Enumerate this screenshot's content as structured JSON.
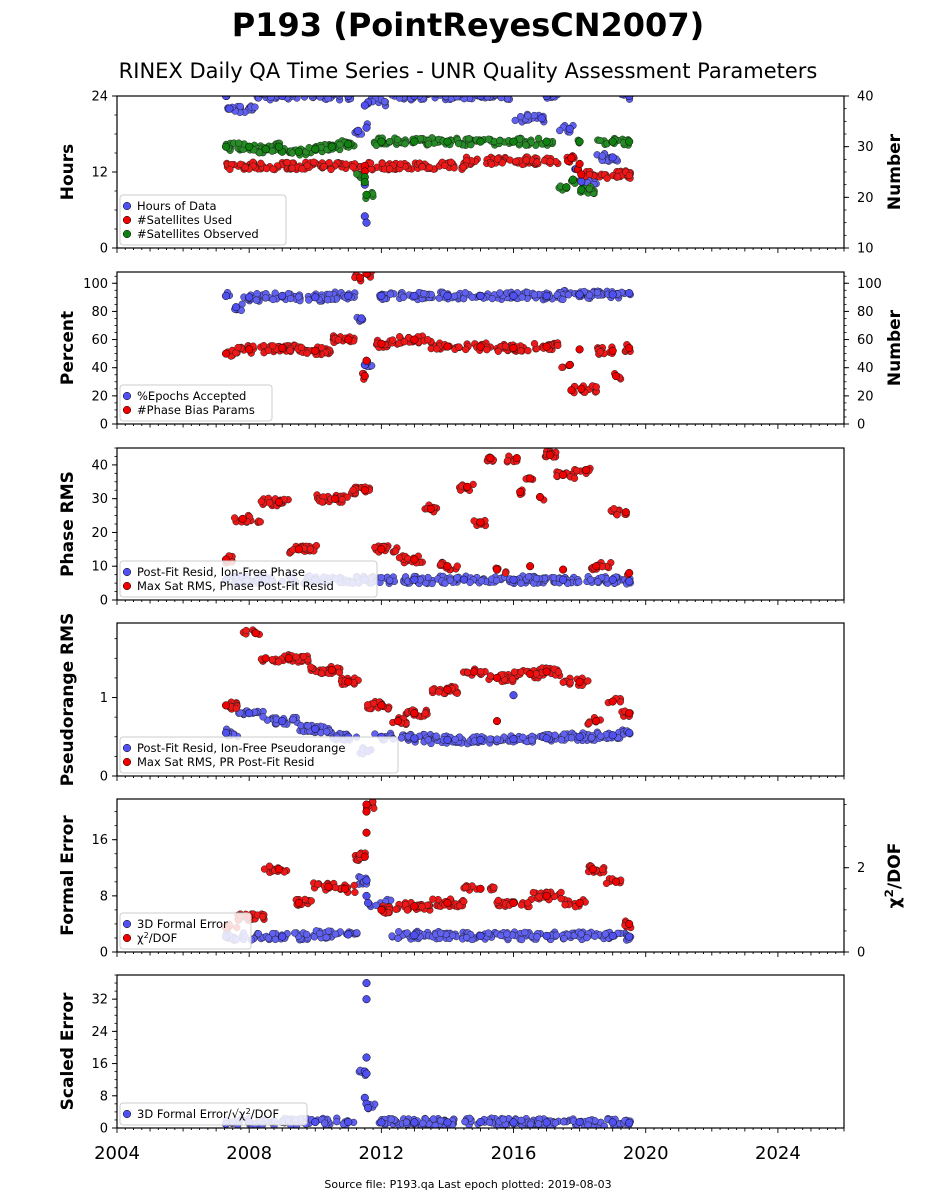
{
  "header": {
    "title": "P193 (PointReyesCN2007)",
    "subtitle": "RINEX Daily QA Time Series - UNR Quality Assessment Parameters"
  },
  "footer": {
    "text": "Source file: P193.qa Last epoch plotted: 2019-08-03"
  },
  "colors": {
    "blue": "#5050f0",
    "red": "#ee0000",
    "green": "#108010",
    "edge": "#000000"
  },
  "chart_data": [
    {
      "type": "scatter",
      "ylabel": "Hours",
      "ylabel_right": "Number",
      "xlim": [
        2004,
        2026
      ],
      "ylim": [
        0,
        24
      ],
      "ylim_right": [
        10,
        40
      ],
      "yticks": [
        0,
        12,
        24
      ],
      "yticks_right": [
        10,
        20,
        30,
        40
      ],
      "legend": "lower-left",
      "series": [
        {
          "name": "Hours of Data",
          "color": "blue",
          "axis": "left",
          "points": [
            [
              2007.3,
              24
            ],
            [
              2009.0,
              24
            ],
            [
              2011.0,
              24
            ],
            [
              2013.0,
              24
            ],
            [
              2015.0,
              24
            ],
            [
              2017.0,
              24
            ],
            [
              2019.5,
              24
            ],
            [
              2007.4,
              22
            ],
            [
              2011.3,
              18.5
            ],
            [
              2011.55,
              19
            ],
            [
              2011.5,
              10
            ],
            [
              2011.5,
              5
            ],
            [
              2011.55,
              4
            ],
            [
              2011.6,
              23
            ],
            [
              2011.5,
              22.5
            ],
            [
              2016.85,
              20.5
            ],
            [
              2017.7,
              18.8
            ],
            [
              2017.9,
              12.5
            ],
            [
              2018.05,
              10.5
            ],
            [
              2019.0,
              14.3
            ]
          ]
        },
        {
          "name": "#Satellites Used",
          "color": "red",
          "axis": "right",
          "points": [
            [
              2011.5,
              26.2
            ],
            [
              2011.5,
              25.1
            ],
            [
              2017.65,
              27.2
            ],
            [
              2017.75,
              27.8
            ],
            [
              2017.95,
              25.5
            ],
            [
              2018.0,
              26.6
            ],
            [
              2018.05,
              24.5
            ]
          ]
        },
        {
          "name": "#Satellites Observed",
          "color": "green",
          "axis": "right",
          "points": [
            [
              2007.3,
              30
            ],
            [
              2008.0,
              30
            ],
            [
              2008.5,
              29.5
            ],
            [
              2009.0,
              29
            ],
            [
              2009.5,
              29
            ],
            [
              2010.0,
              29.5
            ],
            [
              2010.5,
              30
            ],
            [
              2011.0,
              30.5
            ],
            [
              2012.0,
              31
            ],
            [
              2013.0,
              31
            ],
            [
              2014.0,
              31
            ],
            [
              2015.0,
              31
            ],
            [
              2016.0,
              31
            ],
            [
              2017.0,
              31
            ],
            [
              2018.0,
              31
            ],
            [
              2019.0,
              31
            ],
            [
              2019.5,
              31
            ],
            [
              2011.5,
              24
            ],
            [
              2011.5,
              23
            ],
            [
              2011.55,
              20.5
            ],
            [
              2017.6,
              22
            ],
            [
              2017.8,
              23.5
            ],
            [
              2018.05,
              21.5
            ],
            [
              2008.9,
              30
            ]
          ]
        }
      ]
    },
    {
      "type": "scatter",
      "ylabel": "Percent",
      "ylabel_right": "Number",
      "xlim": [
        2004,
        2026
      ],
      "ylim": [
        0,
        108
      ],
      "ylim_right": [
        0,
        108
      ],
      "yticks": [
        0,
        20,
        40,
        60,
        80,
        100
      ],
      "yticks_right": [
        0,
        20,
        40,
        60,
        80,
        100
      ],
      "legend": "lower-left",
      "series": [
        {
          "name": "%Epochs Accepted",
          "color": "blue",
          "axis": "left",
          "points": [
            [
              2007.3,
              91
            ],
            [
              2008.0,
              90
            ],
            [
              2009.0,
              91
            ],
            [
              2010.0,
              90
            ],
            [
              2011.0,
              91
            ],
            [
              2012.0,
              91
            ],
            [
              2013.0,
              91
            ],
            [
              2014.0,
              91
            ],
            [
              2015.0,
              91
            ],
            [
              2016.0,
              91
            ],
            [
              2017.0,
              91
            ],
            [
              2018.0,
              92
            ],
            [
              2019.0,
              92
            ],
            [
              2019.5,
              93
            ],
            [
              2011.5,
              42
            ],
            [
              2011.4,
              75
            ],
            [
              2007.6,
              83
            ]
          ]
        },
        {
          "name": "#Phase Bias Params",
          "color": "red",
          "axis": "right",
          "points": [
            [
              2007.3,
              50
            ],
            [
              2008.0,
              53
            ],
            [
              2009.0,
              54
            ],
            [
              2010.0,
              52
            ],
            [
              2011.0,
              60
            ],
            [
              2012.0,
              57
            ],
            [
              2013.0,
              60
            ],
            [
              2014.0,
              55
            ],
            [
              2015.0,
              55
            ],
            [
              2016.0,
              54
            ],
            [
              2017.0,
              55
            ],
            [
              2018.0,
              53
            ],
            [
              2019.0,
              52
            ],
            [
              2019.5,
              54
            ],
            [
              2011.35,
              104
            ],
            [
              2011.55,
              107
            ],
            [
              2011.5,
              34
            ],
            [
              2011.55,
              45
            ],
            [
              2017.75,
              24
            ],
            [
              2018.05,
              25
            ],
            [
              2019.1,
              34
            ],
            [
              2017.7,
              42
            ]
          ]
        }
      ]
    },
    {
      "type": "scatter",
      "ylabel": "Phase RMS",
      "xlim": [
        2004,
        2026
      ],
      "ylim": [
        0,
        45
      ],
      "yticks": [
        0,
        10,
        20,
        30,
        40
      ],
      "legend": "lower-left",
      "series": [
        {
          "name": "Post-Fit Resid, Ion-Free Phase",
          "color": "blue",
          "axis": "left",
          "points": [
            [
              2007.3,
              6
            ],
            [
              2008.5,
              6
            ],
            [
              2010.0,
              6
            ],
            [
              2011.5,
              6
            ],
            [
              2013.0,
              6
            ],
            [
              2014.5,
              6
            ],
            [
              2016.0,
              6
            ],
            [
              2017.5,
              6
            ],
            [
              2019.0,
              6
            ],
            [
              2019.5,
              5.5
            ]
          ]
        },
        {
          "name": "Max Sat RMS, Phase Post-Fit Resid",
          "color": "red",
          "axis": "left",
          "points": [
            [
              2007.3,
              12
            ],
            [
              2007.8,
              24
            ],
            [
              2008.9,
              29
            ],
            [
              2009.5,
              15
            ],
            [
              2010.6,
              30
            ],
            [
              2011.5,
              32.5
            ],
            [
              2013.5,
              27
            ],
            [
              2014.6,
              33.5
            ],
            [
              2015.0,
              23
            ],
            [
              2015.3,
              42
            ],
            [
              2016.1,
              42
            ],
            [
              2016.2,
              32
            ],
            [
              2016.5,
              36
            ],
            [
              2016.8,
              30.5
            ],
            [
              2017.1,
              43
            ],
            [
              2017.5,
              37
            ],
            [
              2018.2,
              38.5
            ],
            [
              2019.4,
              26
            ],
            [
              2012.0,
              15
            ],
            [
              2013.0,
              12
            ],
            [
              2014.0,
              10
            ],
            [
              2015.5,
              9
            ],
            [
              2016.5,
              10
            ],
            [
              2017.5,
              9
            ],
            [
              2018.5,
              10
            ],
            [
              2019.5,
              8
            ]
          ]
        }
      ]
    },
    {
      "type": "scatter",
      "ylabel": "Pseudorange RMS",
      "xlim": [
        2004,
        2026
      ],
      "ylim": [
        0,
        1.95
      ],
      "yticks": [
        0,
        1
      ],
      "legend": "lower-left",
      "series": [
        {
          "name": "Post-Fit Resid, Ion-Free Pseudorange",
          "color": "blue",
          "axis": "left",
          "points": [
            [
              2007.3,
              0.55
            ],
            [
              2008.0,
              0.8
            ],
            [
              2009.0,
              0.7
            ],
            [
              2010.0,
              0.6
            ],
            [
              2011.0,
              0.5
            ],
            [
              2012.0,
              0.5
            ],
            [
              2013.0,
              0.48
            ],
            [
              2014.0,
              0.46
            ],
            [
              2015.0,
              0.46
            ],
            [
              2016.0,
              0.47
            ],
            [
              2017.0,
              0.48
            ],
            [
              2018.0,
              0.5
            ],
            [
              2019.0,
              0.52
            ],
            [
              2019.5,
              0.55
            ],
            [
              2011.6,
              0.32
            ],
            [
              2016.0,
              1.03
            ]
          ]
        },
        {
          "name": "Max Sat RMS, PR Post-Fit Resid",
          "color": "red",
          "axis": "left",
          "points": [
            [
              2007.3,
              0.9
            ],
            [
              2008.2,
              1.82
            ],
            [
              2008.5,
              1.5
            ],
            [
              2009.2,
              1.5
            ],
            [
              2010.5,
              1.35
            ],
            [
              2011.0,
              1.2
            ],
            [
              2012.0,
              0.9
            ],
            [
              2013.0,
              0.8
            ],
            [
              2014.0,
              1.1
            ],
            [
              2014.8,
              1.33
            ],
            [
              2015.5,
              1.25
            ],
            [
              2016.5,
              1.3
            ],
            [
              2017.0,
              1.33
            ],
            [
              2018.0,
              1.2
            ],
            [
              2019.0,
              0.95
            ],
            [
              2019.5,
              0.8
            ],
            [
              2012.5,
              0.7
            ],
            [
              2015.5,
              0.7
            ],
            [
              2018.5,
              0.7
            ]
          ]
        }
      ]
    },
    {
      "type": "scatter",
      "ylabel": "Formal Error",
      "ylabel_right": "χ2/DOF",
      "xlim": [
        2004,
        2026
      ],
      "ylim": [
        0,
        21.8
      ],
      "ylim_right": [
        0,
        3.63
      ],
      "yticks": [
        0,
        8,
        16
      ],
      "yticks_right": [
        0,
        2
      ],
      "legend": "lower-left",
      "series": [
        {
          "name": "3D Formal Error",
          "color": "blue",
          "axis": "left",
          "points": [
            [
              2007.3,
              2.2
            ],
            [
              2009.0,
              2.2
            ],
            [
              2011.0,
              2.5
            ],
            [
              2013.0,
              2.4
            ],
            [
              2015.0,
              2.3
            ],
            [
              2017.0,
              2.3
            ],
            [
              2019.0,
              2.3
            ],
            [
              2019.5,
              2.2
            ],
            [
              2011.55,
              10.2
            ],
            [
              2011.55,
              8
            ],
            [
              2011.6,
              7
            ]
          ]
        },
        {
          "name": "χ2/DOF",
          "color": "red",
          "axis": "left",
          "points": [
            [
              2007.3,
              3.5
            ],
            [
              2008.0,
              5
            ],
            [
              2008.9,
              11.8
            ],
            [
              2009.5,
              7
            ],
            [
              2010.4,
              9.3
            ],
            [
              2010.9,
              9
            ],
            [
              2011.55,
              21
            ],
            [
              2011.55,
              20
            ],
            [
              2011.55,
              17
            ],
            [
              2011.5,
              13.6
            ],
            [
              2012.0,
              6
            ],
            [
              2013.0,
              6.5
            ],
            [
              2014.0,
              7
            ],
            [
              2015.0,
              9
            ],
            [
              2016.0,
              7
            ],
            [
              2017.0,
              8
            ],
            [
              2018.0,
              7
            ],
            [
              2018.4,
              11.8
            ],
            [
              2019.1,
              10
            ],
            [
              2019.5,
              4
            ]
          ]
        }
      ]
    },
    {
      "type": "scatter",
      "ylabel": "Scaled Error",
      "xlim": [
        2004,
        2026
      ],
      "ylim": [
        0,
        38
      ],
      "yticks": [
        0,
        8,
        16,
        24,
        32
      ],
      "xticks": [
        2004,
        2008,
        2012,
        2016,
        2020,
        2024
      ],
      "legend": "lower-left",
      "series": [
        {
          "name": "3D Formal Error/√χ2/DOF",
          "color": "blue",
          "axis": "left",
          "points": [
            [
              2007.3,
              1.0
            ],
            [
              2008.0,
              1.5
            ],
            [
              2009.0,
              1.5
            ],
            [
              2010.0,
              1.5
            ],
            [
              2011.0,
              1.5
            ],
            [
              2012.0,
              1.4
            ],
            [
              2013.0,
              1.4
            ],
            [
              2014.0,
              1.4
            ],
            [
              2015.0,
              1.5
            ],
            [
              2016.0,
              1.4
            ],
            [
              2017.0,
              1.4
            ],
            [
              2018.0,
              1.5
            ],
            [
              2019.0,
              1.4
            ],
            [
              2019.5,
              1.3
            ],
            [
              2011.55,
              36
            ],
            [
              2011.55,
              32
            ],
            [
              2011.55,
              17.5
            ],
            [
              2011.5,
              14
            ],
            [
              2011.55,
              13.5
            ],
            [
              2011.5,
              7.5
            ],
            [
              2011.55,
              6
            ],
            [
              2011.6,
              5
            ]
          ]
        }
      ]
    }
  ]
}
